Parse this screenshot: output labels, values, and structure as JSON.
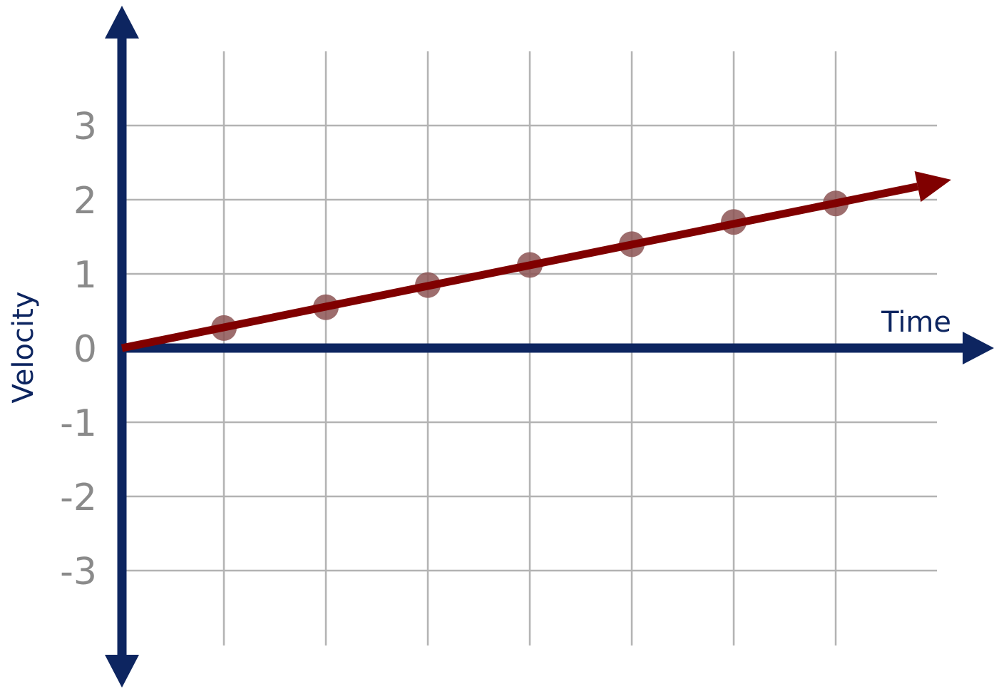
{
  "chart_data": {
    "type": "scatter",
    "xlabel": "Time",
    "ylabel": "Velocity",
    "ylim": [
      -3,
      3
    ],
    "y_ticks": [
      "3",
      "2",
      "1",
      "0",
      "-1",
      "-2",
      "-3"
    ],
    "grid": true,
    "series": [
      {
        "x": [
          1,
          2,
          3,
          4,
          5,
          6,
          7
        ],
        "y": [
          0.27,
          0.55,
          0.85,
          1.12,
          1.4,
          1.7,
          1.95
        ]
      }
    ],
    "trend_line": {
      "slope": 0.275,
      "intercept": 0
    }
  },
  "colors": {
    "axis": "#0d2560",
    "grid": "#b3b3b3",
    "trend": "#800000",
    "points": "#8c5454",
    "tick_text": "#8a8a8a"
  }
}
